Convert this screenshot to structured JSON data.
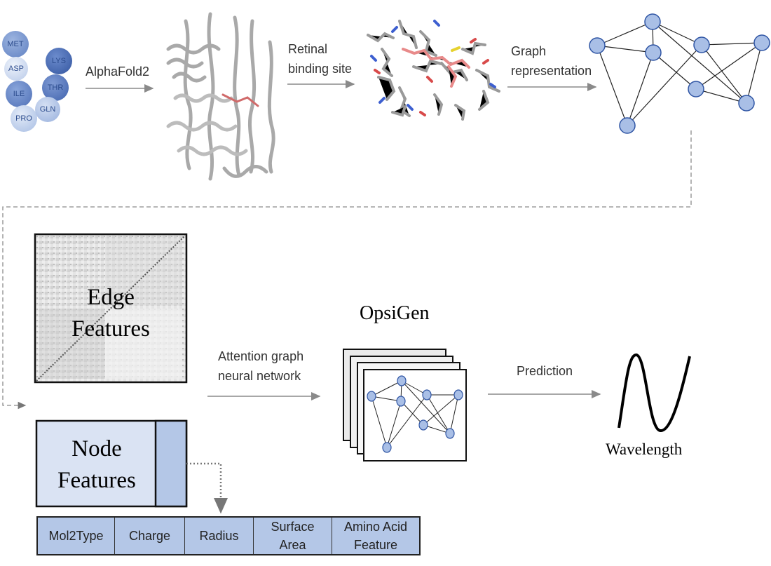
{
  "amino_acids": [
    "MET",
    "ASP",
    "ILE",
    "PRO",
    "LYS",
    "THR",
    "GLN"
  ],
  "steps": {
    "alphafold": "AlphaFold2",
    "retinal_line1": "Retinal",
    "retinal_line2": "binding site",
    "graph_line1": "Graph",
    "graph_line2": "representation",
    "attention_line1": "Attention graph",
    "attention_line2": "neural network",
    "prediction": "Prediction"
  },
  "edge_features": {
    "line1": "Edge",
    "line2": "Features"
  },
  "node_features": {
    "line1": "Node",
    "line2": "Features"
  },
  "model_name": "OpsiGen",
  "output_label": "Wavelength",
  "feature_table": [
    {
      "line1": "Mol2Type",
      "line2": ""
    },
    {
      "line1": "Charge",
      "line2": ""
    },
    {
      "line1": "Radius",
      "line2": ""
    },
    {
      "line1": "Surface",
      "line2": "Area"
    },
    {
      "line1": "Amino Acid",
      "line2": "Feature"
    }
  ],
  "colors": {
    "node_fill": "#a9bfe6",
    "node_stroke": "#2f55a4",
    "table_fill": "#b4c7e7",
    "node_box_fill": "#dae3f3",
    "retinal": "#e88a8a"
  }
}
